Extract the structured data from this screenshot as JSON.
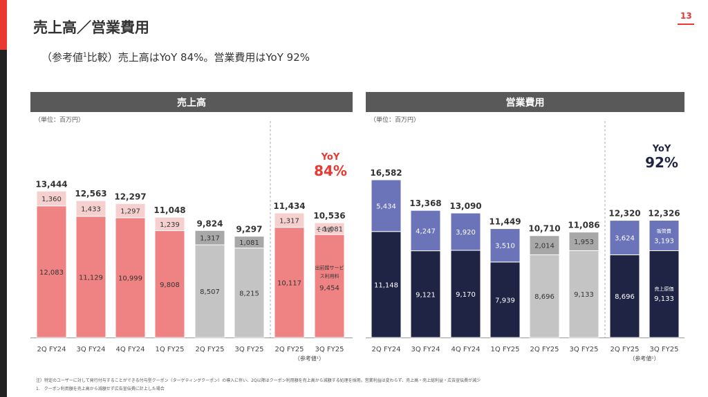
{
  "header": {
    "title": "売上高／営業費用",
    "page_number": "13",
    "subtitle_lead": "（参考値",
    "subtitle_sup": "1",
    "subtitle_rest": "比較）売上高はYoY 84%。営業費用はYoY 92%"
  },
  "chart_data": [
    {
      "type": "bar",
      "stacked": true,
      "title": "売上高",
      "unit_label": "（単位：百万円）",
      "categories": [
        "2Q FY24",
        "3Q FY24",
        "4Q FY24",
        "1Q FY25",
        "2Q FY25",
        "3Q FY25",
        "2Q FY25",
        "3Q FY25"
      ],
      "reference_note": "（参考値¹）",
      "totals": [
        13444,
        12563,
        12297,
        11048,
        9824,
        9297,
        11434,
        10536
      ],
      "series": [
        {
          "values": [
            12083,
            11129,
            10999,
            9808,
            8507,
            8215,
            10117,
            9454
          ]
        },
        {
          "values": [
            1360,
            1433,
            1297,
            1239,
            1317,
            1081,
            1317,
            1081
          ]
        }
      ],
      "inline_labels": {
        "bottom": "出前館サービス利用料",
        "top": "その他"
      },
      "yoy_label": "YoY",
      "yoy_value": "84%",
      "colors": {
        "bottom_main": "#ef8383",
        "top_main": "#f6cfcf",
        "bottom_gray": "#c4c4c4",
        "top_gray": "#a8a8a8",
        "accent": "#e8382f"
      }
    },
    {
      "type": "bar",
      "stacked": true,
      "title": "営業費用",
      "unit_label": "（単位：百万円）",
      "categories": [
        "2Q FY24",
        "3Q FY24",
        "4Q FY24",
        "1Q FY25",
        "2Q FY25",
        "3Q FY25",
        "2Q FY25",
        "3Q FY25"
      ],
      "reference_note": "（参考値¹）",
      "totals": [
        16582,
        13368,
        13090,
        11449,
        10710,
        11086,
        12320,
        12326
      ],
      "series": [
        {
          "values": [
            11148,
            9121,
            9170,
            7939,
            8696,
            9133,
            8696,
            9133
          ]
        },
        {
          "values": [
            5434,
            4247,
            3920,
            3510,
            2014,
            1953,
            3624,
            3193
          ]
        }
      ],
      "inline_labels": {
        "bottom": "売上原価",
        "top": "販管費"
      },
      "yoy_label": "YoY",
      "yoy_value": "92%",
      "colors": {
        "bottom_main": "#1f2445",
        "top_main": "#6b74b8",
        "bottom_gray": "#c4c4c4",
        "top_gray": "#a8a8a8",
        "accent": "#1f2445"
      }
    }
  ],
  "footnotes": [
    "注）特定のユーザーに対して発行付与することができる付与型クーポン（ターゲティングクーポン）の導入に伴い、2Q以降はクーポン利用額を売上高から減額する処理を採用。営業利益は変わらず、売上高・売上総利益・広告宣伝費が減少",
    "1.　クーポン利用額を売上高から減額せず広告宣伝費に計上した場合"
  ]
}
